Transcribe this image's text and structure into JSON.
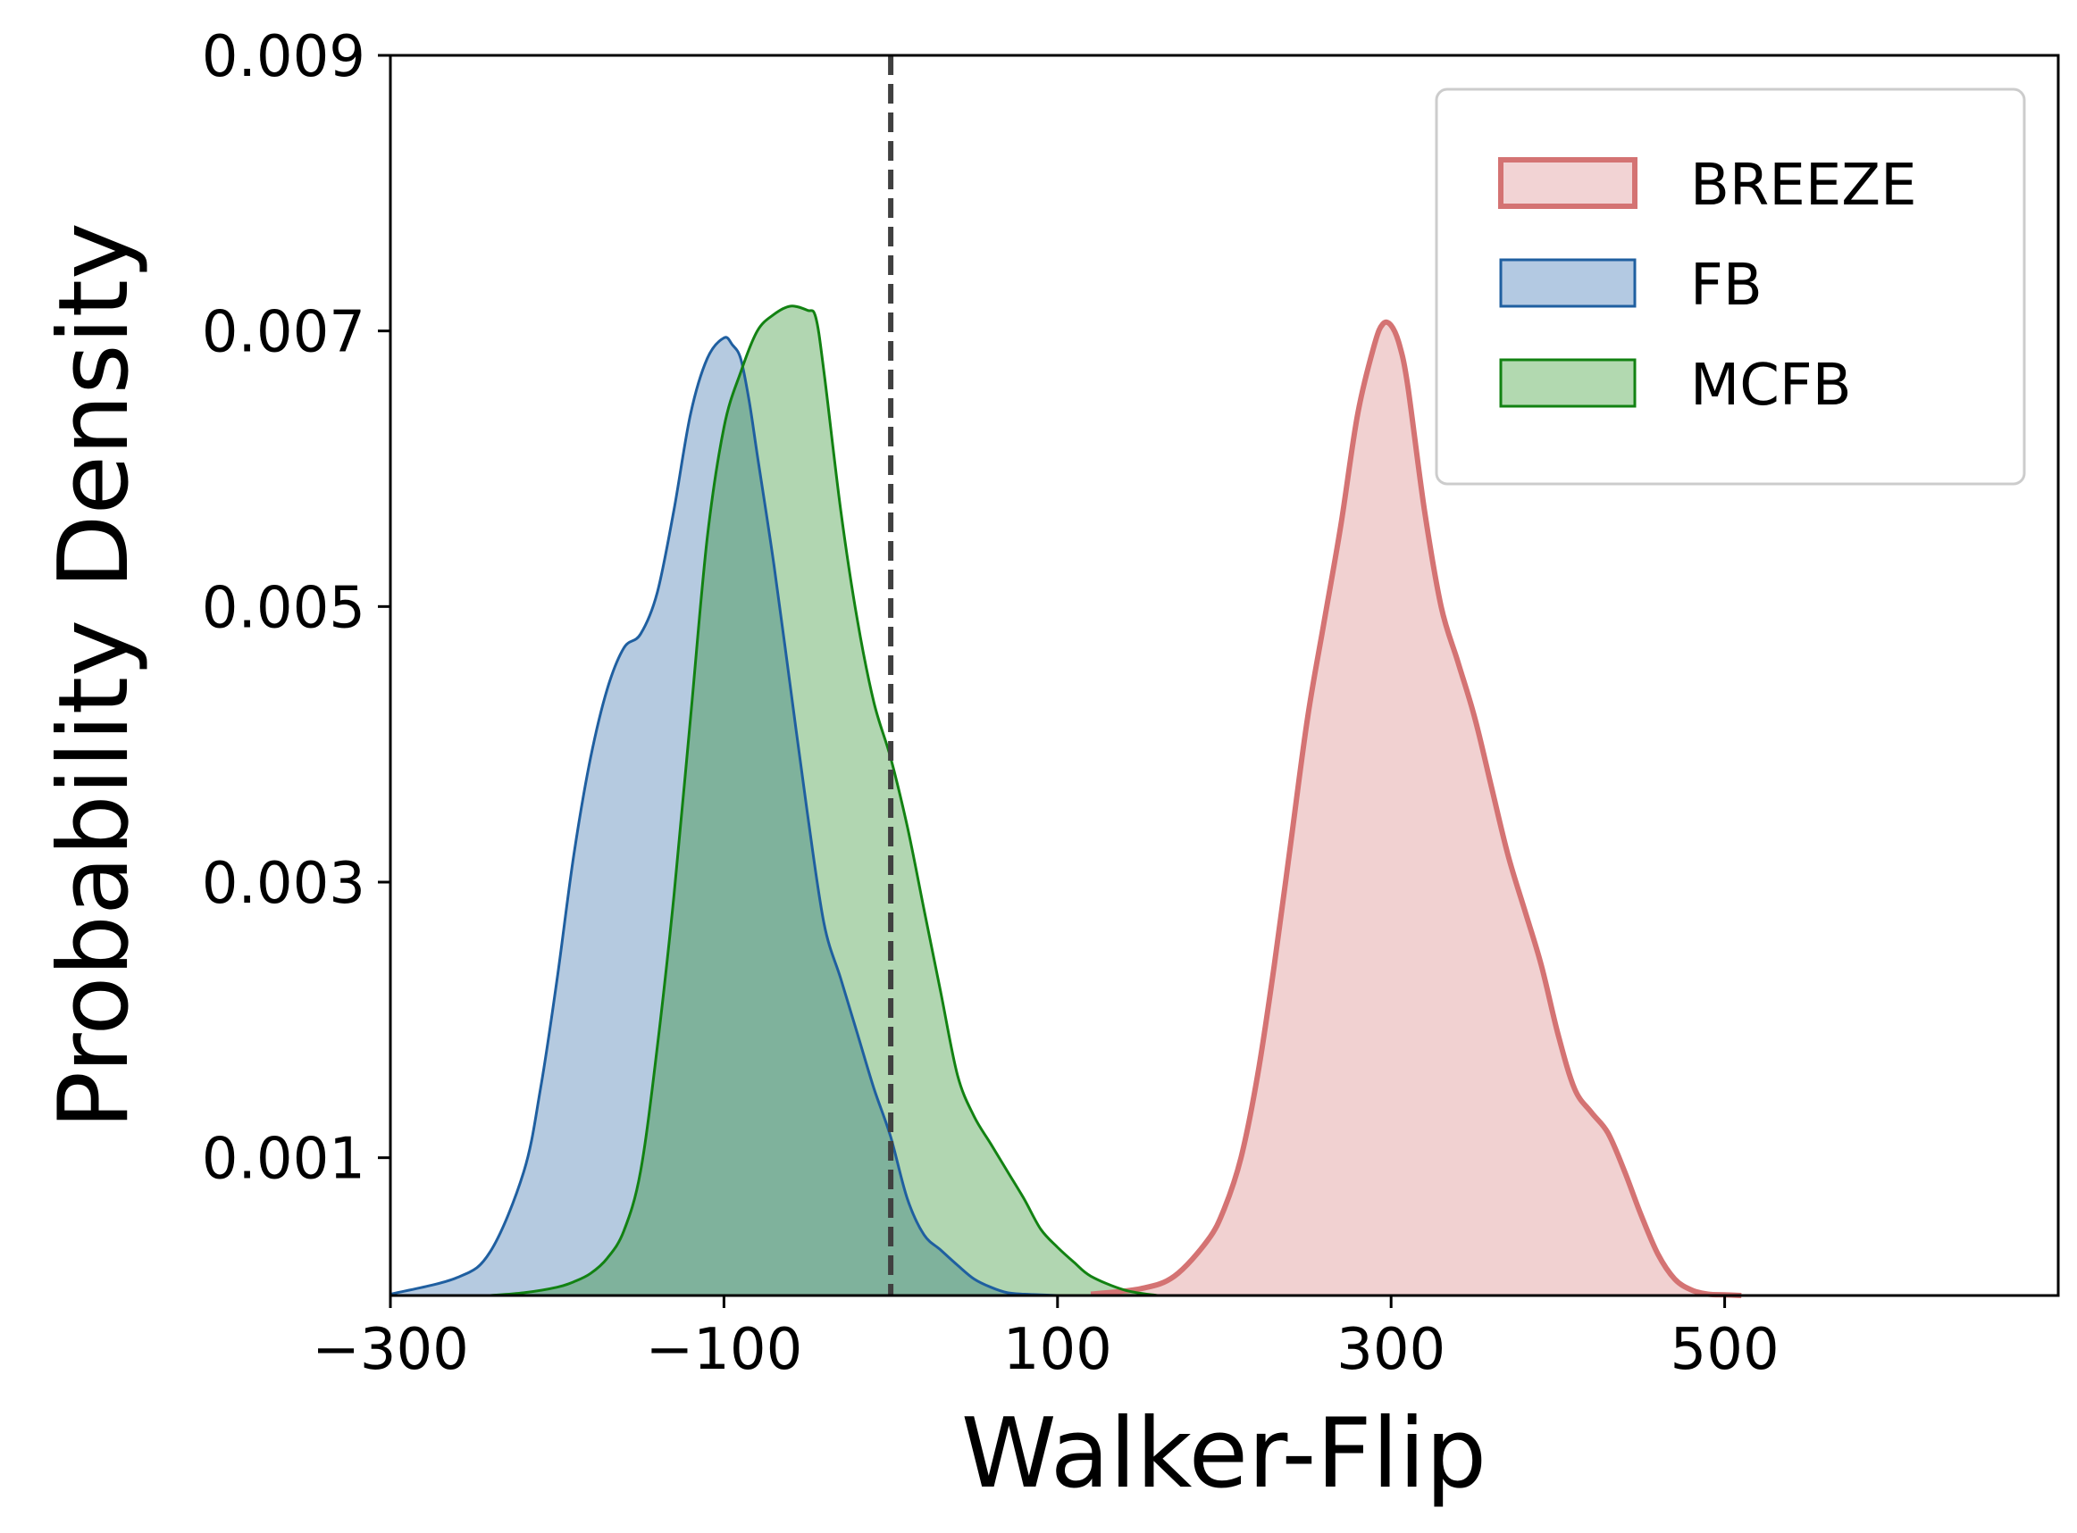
{
  "chart_data": {
    "type": "area",
    "title": "",
    "xlabel": "Walker-Flip",
    "ylabel": "Probability Density",
    "xlim": [
      -300,
      700
    ],
    "ylim": [
      0,
      0.009
    ],
    "x_ticks": [
      -300,
      -100,
      100,
      300,
      500
    ],
    "x_tick_labels": [
      "−300",
      "−100",
      "100",
      "300",
      "500"
    ],
    "y_ticks": [
      0.001,
      0.003,
      0.005,
      0.007,
      0.009
    ],
    "y_tick_labels": [
      "0.001",
      "0.003",
      "0.005",
      "0.007",
      "0.009"
    ],
    "grid": false,
    "legend_position": "top-right",
    "reference_line": {
      "x": 0,
      "style": "dashed",
      "color": "#404040"
    },
    "series": [
      {
        "name": "BREEZE",
        "color": "#d47373",
        "fill": "#f2d3d4",
        "x": [
          120,
          150,
          170,
          190,
          200,
          210,
          220,
          230,
          240,
          250,
          260,
          270,
          280,
          290,
          295,
          300,
          305,
          310,
          320,
          330,
          340,
          350,
          360,
          370,
          380,
          390,
          400,
          410,
          420,
          430,
          440,
          450,
          460,
          470,
          480,
          490,
          500,
          510
        ],
        "y": [
          1e-05,
          5e-05,
          0.00014,
          0.0004,
          0.00063,
          0.001,
          0.0016,
          0.0024,
          0.0033,
          0.0042,
          0.0049,
          0.0056,
          0.0064,
          0.0069,
          0.00705,
          0.00704,
          0.0069,
          0.0066,
          0.0057,
          0.005,
          0.0046,
          0.0042,
          0.0037,
          0.0032,
          0.0028,
          0.0024,
          0.0019,
          0.0015,
          0.00133,
          0.00118,
          0.0009,
          0.00058,
          0.0003,
          0.00012,
          4e-05,
          1e-05,
          5e-06,
          0.0
        ]
      },
      {
        "name": "FB",
        "color": "#1f5fa0",
        "fill": "#b3c9e2",
        "x": [
          -300,
          -260,
          -240,
          -220,
          -210,
          -200,
          -190,
          -180,
          -170,
          -160,
          -150,
          -140,
          -130,
          -120,
          -110,
          -100,
          -95,
          -90,
          -85,
          -80,
          -70,
          -60,
          -50,
          -40,
          -30,
          -20,
          -10,
          0,
          10,
          20,
          30,
          40,
          50,
          60,
          70,
          80,
          90,
          100
        ],
        "y": [
          1e-05,
          0.00013,
          0.00032,
          0.0009,
          0.0015,
          0.0023,
          0.0032,
          0.0039,
          0.0044,
          0.0047,
          0.0048,
          0.0051,
          0.0057,
          0.0064,
          0.0068,
          0.00695,
          0.0069,
          0.0068,
          0.0065,
          0.0061,
          0.0053,
          0.0044,
          0.0035,
          0.0027,
          0.0023,
          0.0019,
          0.0015,
          0.00115,
          0.0007,
          0.00044,
          0.00033,
          0.00022,
          0.00012,
          6e-05,
          2e-05,
          1e-05,
          5e-06,
          0.0
        ]
      },
      {
        "name": "MCFB",
        "color": "#128212",
        "fill": "#b2d9b0",
        "x": [
          -240,
          -220,
          -200,
          -190,
          -180,
          -170,
          -160,
          -150,
          -140,
          -130,
          -120,
          -110,
          -100,
          -90,
          -80,
          -70,
          -60,
          -50,
          -45,
          -40,
          -30,
          -20,
          -10,
          0,
          10,
          20,
          30,
          40,
          50,
          60,
          70,
          80,
          90,
          100,
          110,
          120,
          140,
          160
        ],
        "y": [
          0.0,
          2e-05,
          6e-05,
          0.0001,
          0.00016,
          0.00027,
          0.00047,
          0.0009,
          0.0018,
          0.0029,
          0.0042,
          0.0055,
          0.0063,
          0.0067,
          0.007,
          0.00712,
          0.00718,
          0.00715,
          0.0071,
          0.0067,
          0.0057,
          0.0049,
          0.0043,
          0.0039,
          0.0034,
          0.0028,
          0.0022,
          0.0016,
          0.0013,
          0.0011,
          0.0009,
          0.0007,
          0.00048,
          0.00035,
          0.00024,
          0.00014,
          4e-05,
          0.0
        ]
      }
    ]
  }
}
